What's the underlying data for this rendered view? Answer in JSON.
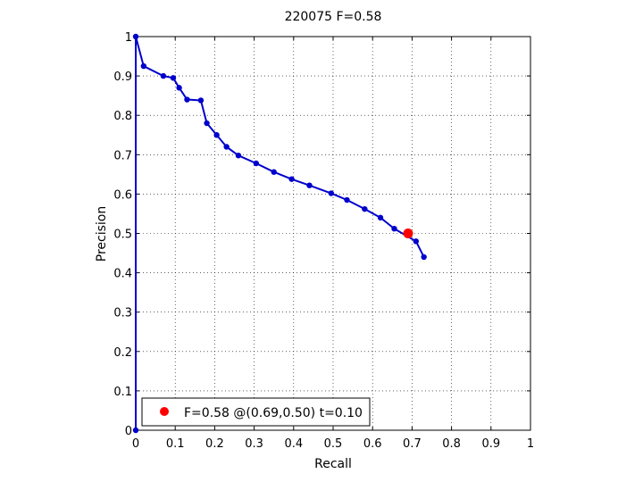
{
  "chart_data": {
    "type": "line",
    "title": "220075 F=0.58",
    "xlabel": "Recall",
    "ylabel": "Precision",
    "xlim": [
      0,
      1
    ],
    "ylim": [
      0,
      1
    ],
    "xticks": [
      "0",
      "0.1",
      "0.2",
      "0.3",
      "0.4",
      "0.5",
      "0.6",
      "0.7",
      "0.8",
      "0.9",
      "1"
    ],
    "yticks": [
      "0",
      "0.1",
      "0.2",
      "0.3",
      "0.4",
      "0.5",
      "0.6",
      "0.7",
      "0.8",
      "0.9",
      "1"
    ],
    "grid": true,
    "grid_style": "dotted",
    "legend_position": "bottom-left",
    "series": [
      {
        "color": "#0000cc",
        "marker": "circle",
        "x": [
          0.0,
          0.0,
          0.02,
          0.07,
          0.095,
          0.11,
          0.13,
          0.165,
          0.18,
          0.205,
          0.23,
          0.26,
          0.305,
          0.35,
          0.395,
          0.44,
          0.495,
          0.535,
          0.58,
          0.62,
          0.655,
          0.71,
          0.73
        ],
        "y": [
          0.0,
          1.0,
          0.925,
          0.9,
          0.895,
          0.87,
          0.84,
          0.838,
          0.78,
          0.75,
          0.72,
          0.698,
          0.678,
          0.656,
          0.638,
          0.622,
          0.602,
          0.585,
          0.562,
          0.54,
          0.512,
          0.48,
          0.44
        ]
      }
    ],
    "highlight_point": {
      "x": 0.69,
      "y": 0.5,
      "color": "#ff0000",
      "label": "F=0.58 @(0.69,0.50) t=0.10"
    }
  }
}
